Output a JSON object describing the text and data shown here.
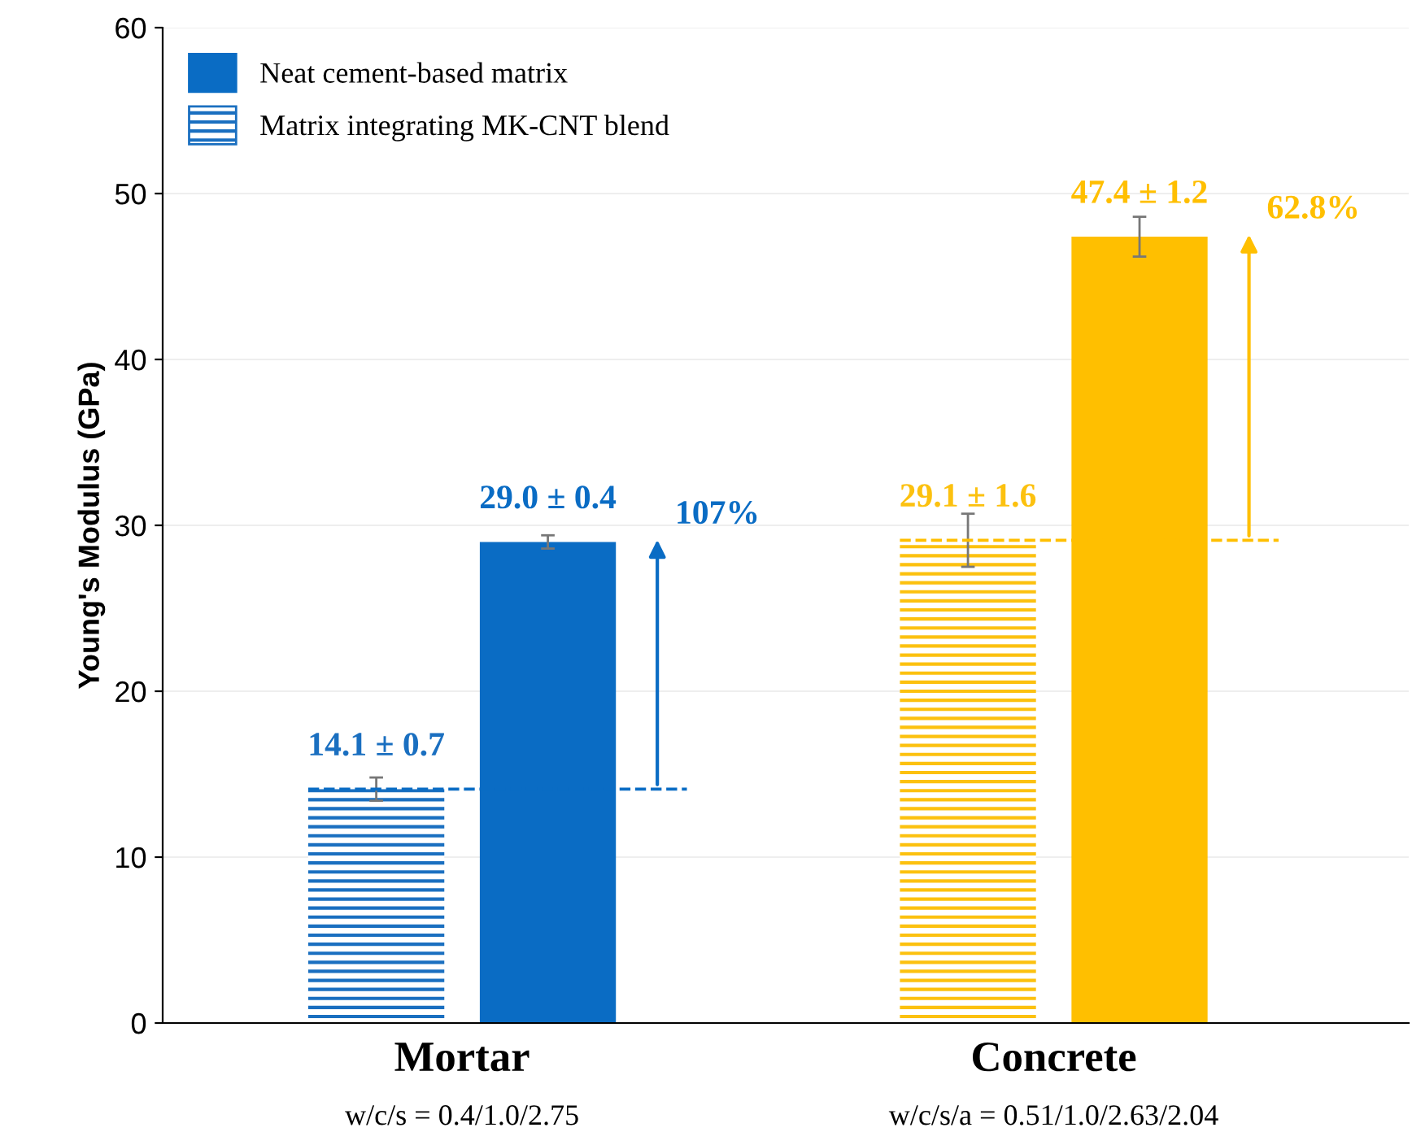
{
  "chart_data": {
    "type": "bar",
    "ylabel": "Young's Modulus (GPa)",
    "categories": [
      "Mortar",
      "Concrete"
    ],
    "series": [
      {
        "name": "Matrix integrating MK-CNT blend",
        "colors": [
          "#1a6fc0",
          "#fcc10f"
        ],
        "values": [
          14.1,
          29.1
        ],
        "errors": [
          0.7,
          1.6
        ],
        "value_labels": [
          "14.1 ± 0.7",
          "29.1 ± 1.6"
        ]
      },
      {
        "name": "Neat cement-based matrix",
        "colors": [
          "#0a6cc4",
          "#ffbf00"
        ],
        "values": [
          29.0,
          47.4
        ],
        "errors": [
          0.4,
          1.2
        ],
        "value_labels": [
          "29.0 ± 0.4",
          "47.4 ± 1.2"
        ]
      }
    ],
    "annotations": [
      "107%",
      "62.8%",
      "w/c/s = 0.4/1.0/2.75",
      "w/c/s/a = 0.51/1.0/2.63/2.04"
    ],
    "ylim": [
      0,
      60
    ],
    "yticks": [
      0,
      10,
      20,
      30,
      40,
      50,
      60
    ],
    "grid": "y",
    "legend": "top left"
  }
}
